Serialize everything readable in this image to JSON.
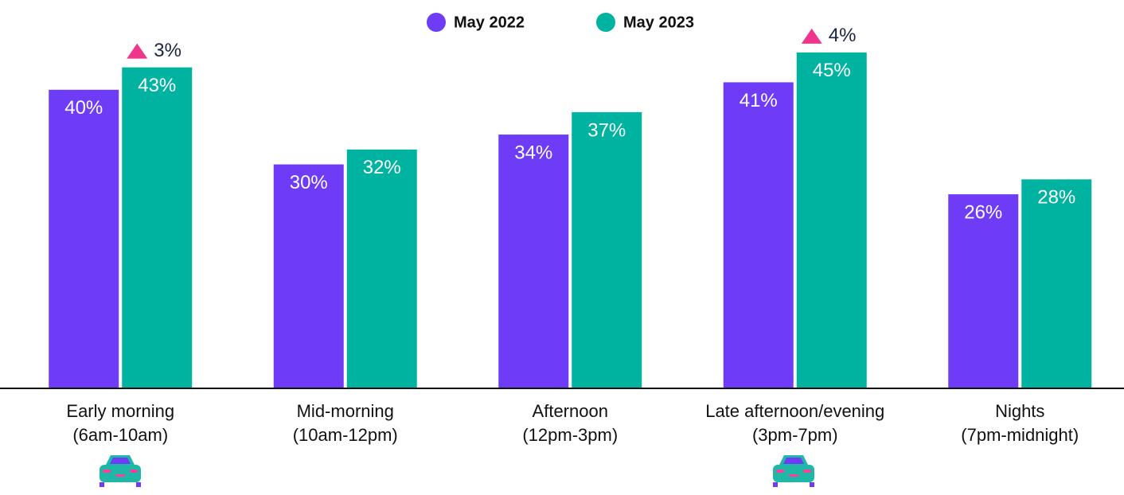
{
  "chart_data": {
    "type": "bar",
    "categories": [
      "Early morning\n(6am-10am)",
      "Mid-morning\n(10am-12pm)",
      "Afternoon\n(12pm-3pm)",
      "Late afternoon/evening\n(3pm-7pm)",
      "Nights\n(7pm-midnight)"
    ],
    "series": [
      {
        "name": "May 2022",
        "color": "#6e3bf7",
        "values": [
          40,
          30,
          34,
          41,
          26
        ],
        "value_labels": [
          "40%",
          "30%",
          "34%",
          "41%",
          "26%"
        ]
      },
      {
        "name": "May 2023",
        "color": "#00b2a0",
        "values": [
          43,
          32,
          37,
          45,
          28
        ],
        "value_labels": [
          "43%",
          "32%",
          "37%",
          "45%",
          "28%"
        ]
      }
    ],
    "annotations": [
      "3%",
      "4%"
    ],
    "ylim": [
      0,
      50
    ],
    "legend": "top"
  }
}
